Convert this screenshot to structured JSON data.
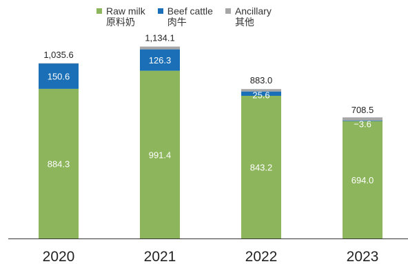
{
  "chart_data": {
    "type": "bar",
    "stacked": true,
    "categories": [
      "2020",
      "2021",
      "2022",
      "2023"
    ],
    "series": [
      {
        "name": "Raw milk",
        "name_zh": "原料奶",
        "color": "#8db55c",
        "values": [
          884.3,
          991.4,
          843.2,
          694.0
        ]
      },
      {
        "name": "Beef cattle",
        "name_zh": "肉牛",
        "color": "#1a6fb7",
        "values": [
          150.6,
          126.3,
          25.6,
          -3.6
        ]
      },
      {
        "name": "Ancillary",
        "name_zh": "其他",
        "color": "#a6a6a6",
        "values": [
          0.7,
          16.4,
          14.2,
          18.1
        ]
      }
    ],
    "segment_labels": [
      [
        "884.3",
        "991.4",
        "843.2",
        "694.0"
      ],
      [
        "150.6",
        "126.3",
        "25.6",
        "−3.6"
      ]
    ],
    "totals": [
      1035.6,
      1134.1,
      883.0,
      708.5
    ],
    "total_labels": [
      "1,035.6",
      "1,134.1",
      "883.0",
      "708.5"
    ],
    "title": "",
    "xlabel": "",
    "ylabel": "",
    "ylim": [
      0,
      1200
    ],
    "grid": false,
    "legend_position": "top"
  }
}
